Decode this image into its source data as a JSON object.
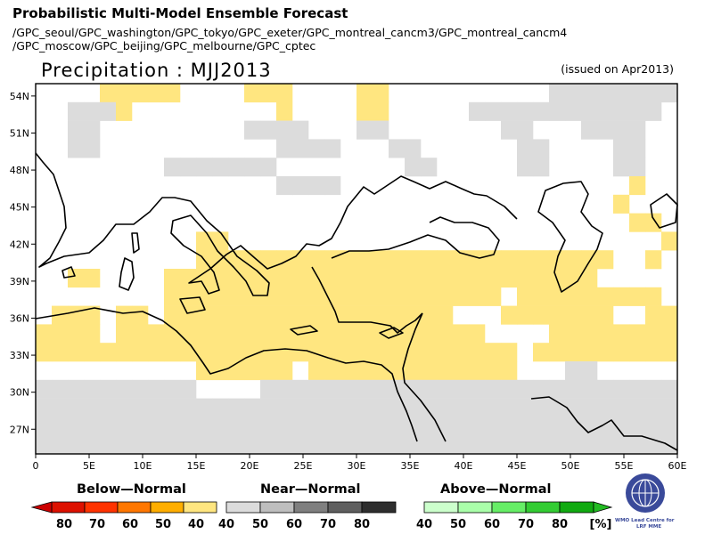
{
  "header": {
    "title": "Probabilistic Multi-Model Ensemble Forecast",
    "models_line1": "/GPC_seoul/GPC_washington/GPC_tokyo/GPC_exeter/GPC_montreal_cancm3/GPC_montreal_cancm4",
    "models_line2": "/GPC_moscow/GPC_beijing/GPC_melbourne/GPC_cptec",
    "subtitle": "Precipitation : MJJ2013",
    "issued": "(issued on Apr2013)"
  },
  "map": {
    "lon_range": [
      0,
      60
    ],
    "lat_range": [
      25,
      55
    ],
    "lat_ticks": [
      "54N",
      "51N",
      "48N",
      "45N",
      "42N",
      "39N",
      "36N",
      "33N",
      "30N",
      "27N"
    ],
    "lat_values": [
      54,
      51,
      48,
      45,
      42,
      39,
      36,
      33,
      30,
      27
    ],
    "lon_ticks": [
      "0",
      "5E",
      "10E",
      "15E",
      "20E",
      "25E",
      "30E",
      "35E",
      "40E",
      "45E",
      "50E",
      "55E",
      "60E"
    ],
    "lon_values": [
      0,
      5,
      10,
      15,
      20,
      25,
      30,
      35,
      40,
      45,
      50,
      55,
      60
    ],
    "cell_size_deg": 2.5,
    "category_colors": {
      "B40": "#ffe680",
      "B50": "#ffae00",
      "N40": "#dcdcdc",
      "N50": "#bebebe",
      "N60": "#7f7f7f",
      "N70": "#5f5f5f",
      "A40": "#ccffcc"
    },
    "grid": [
      "....BBBBB....BBB....BB..........NNNNNNNN",
      "..NNNB.........B....BB.....NNNNNNNNNNNN.",
      "..NN.........NNNN...NN.......NN...NNNN..",
      "..NN...........NNNN...NN......NN....NN..",
      "........NNNNNNN........NN.....NN....NN..",
      "...............NNNN..................B..",
      "....................................B...",
      ".....................................BB.",
      "..........BB...........................B",
      "..........BBBBBBBBBBBBBBBBBBBBBBBBBB..B.",
      "..BB....BBBBBBBBBBBBBBBBBBBBBBBBBBB.....",
      "........BBBBBBBBBBBBBBBBBBBBB.BBBBBBBBB.",
      ".BBB.BB.BBBBBBBBBBBBBBBBBB...BBBBBBB..BB",
      "BBBB.BBBBBBBBBBBBBBBBBBBBBBB....BBBBBBBB",
      "BBBBBBBBBBBBBBBBBBBBBBBBBBBBBB.BBBBBBBBB",
      "..........BBBBBB.BBBBBBBBBBBBB...NN.....",
      "NNNNNNNNNN....NNNNNNNNNNNNNNNNNNNNNNNNNN",
      "NNNNNNNNNNNNNNNNNNNNNNNNNNNNNNNNNNNNNNNN",
      "NNNNNNNNNNNNNNNNNNNNNNNNNNNNNNNNNNNNNNNN",
      "NNNNNNNNNNNNNNNNNNNNNNNNNNNNNNNNNNNNNNNN"
    ],
    "legend_regions": []
  },
  "legend": {
    "below": {
      "title": "Below—Normal",
      "labels": [
        "80",
        "70",
        "60",
        "50",
        "40"
      ],
      "colors": [
        "#dd1100",
        "#ff3300",
        "#ff7700",
        "#ffae00",
        "#ffe680"
      ]
    },
    "near": {
      "title": "Near—Normal",
      "labels": [
        "40",
        "50",
        "60",
        "70",
        "80"
      ],
      "colors": [
        "#dcdcdc",
        "#bebebe",
        "#7f7f7f",
        "#5f5f5f",
        "#2e2e2e"
      ]
    },
    "above": {
      "title": "Above—Normal",
      "labels": [
        "40",
        "50",
        "60",
        "70",
        "80"
      ],
      "colors": [
        "#ccffcc",
        "#aaffaa",
        "#66ee66",
        "#33cc33",
        "#11aa11"
      ],
      "unit": "[%]"
    }
  },
  "logo": {
    "line1": "WMO Lead Centre for",
    "line2": "LRF MME"
  }
}
